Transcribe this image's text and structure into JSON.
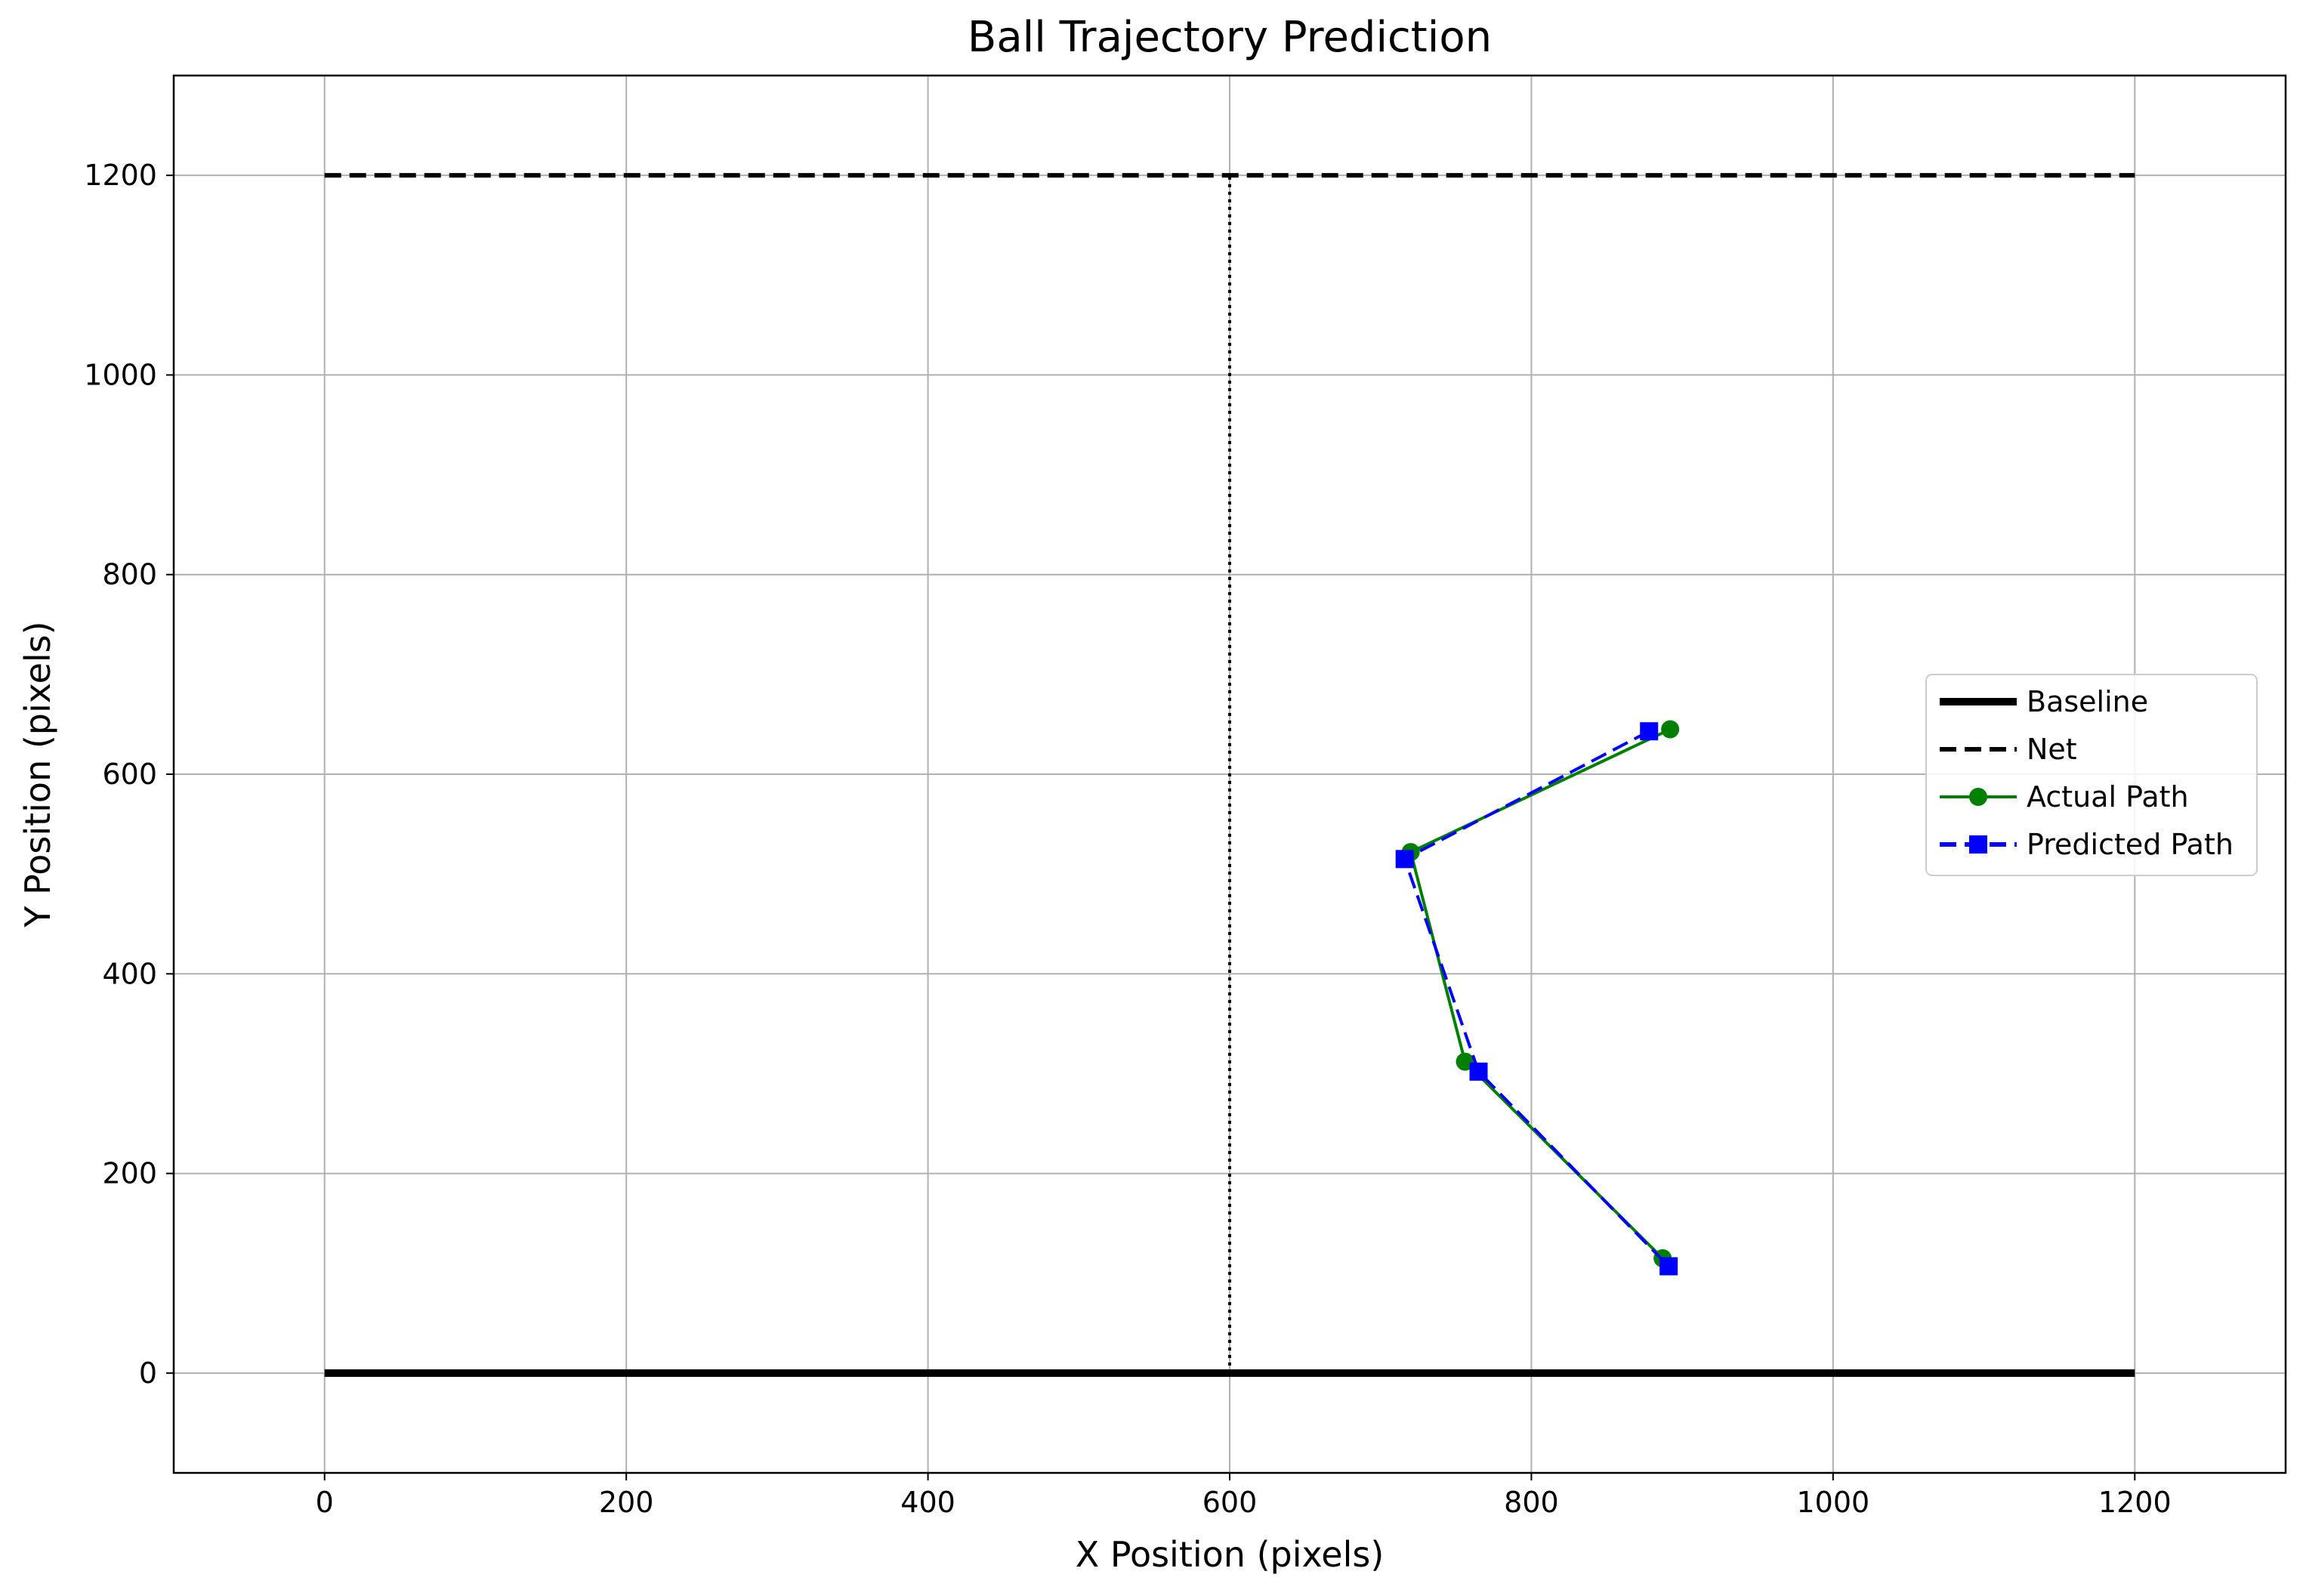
{
  "chart_data": {
    "type": "line",
    "title": "Ball Trajectory Prediction",
    "xlabel": "X Position (pixels)",
    "ylabel": "Y Position (pixels)",
    "xlim": [
      -100,
      1300
    ],
    "ylim": [
      -100,
      1300
    ],
    "xticks": [
      0,
      200,
      400,
      600,
      800,
      1000,
      1200
    ],
    "yticks": [
      0,
      200,
      400,
      600,
      800,
      1000,
      1200
    ],
    "grid": true,
    "legend_position": "right",
    "court_lines": [
      {
        "name": "Baseline",
        "x": [
          0,
          1200
        ],
        "y": [
          0,
          0
        ],
        "color": "#000000",
        "style": "solid"
      },
      {
        "name": "Net",
        "x": [
          0,
          1200
        ],
        "y": [
          1200,
          1200
        ],
        "color": "#000000",
        "style": "dashed"
      },
      {
        "name": "",
        "x": [
          600,
          600
        ],
        "y": [
          0,
          1200
        ],
        "color": "#000000",
        "style": "dotted"
      }
    ],
    "series": [
      {
        "name": "Actual Path",
        "color": "#008000",
        "marker": "circle",
        "style": "solid",
        "x": [
          892,
          720,
          756,
          887
        ],
        "y": [
          645,
          522,
          312,
          115
        ]
      },
      {
        "name": "Predicted Path",
        "color": "#0000ff",
        "marker": "square",
        "style": "dashed",
        "x": [
          878,
          716,
          765,
          891
        ],
        "y": [
          643,
          515,
          302,
          107
        ]
      }
    ],
    "legend": [
      {
        "label": "Baseline",
        "style": "solid-thick",
        "color": "#000000"
      },
      {
        "label": "Net",
        "style": "dashed",
        "color": "#000000"
      },
      {
        "label": "Actual Path",
        "style": "solid-circle",
        "color": "#008000"
      },
      {
        "label": "Predicted Path",
        "style": "dashed-square",
        "color": "#0000ff"
      }
    ]
  }
}
